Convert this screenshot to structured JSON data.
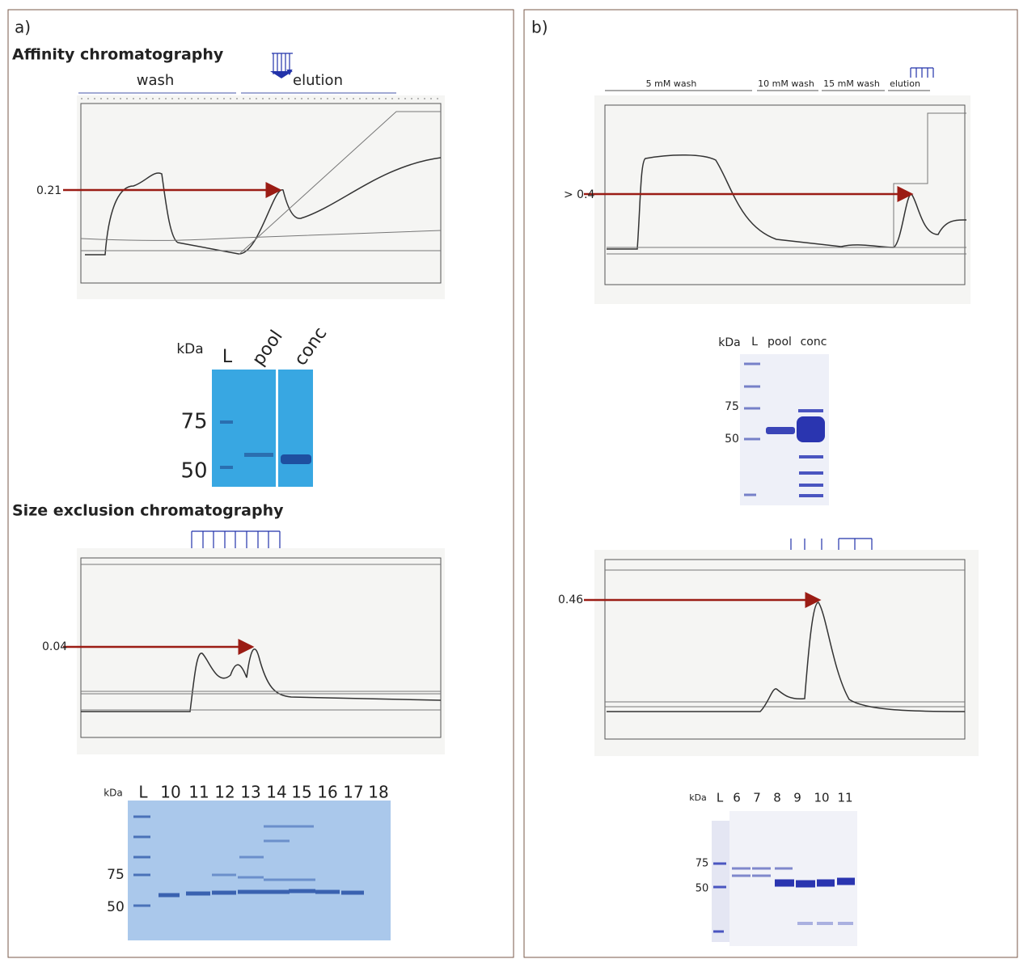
{
  "panel_a": {
    "label": "a)",
    "affinity": {
      "title": "Affinity chromatography",
      "regions": [
        "wash",
        "elution"
      ],
      "peak_label": "0.21"
    },
    "affinity_gel": {
      "unit": "kDa",
      "lanes": [
        "L",
        "pool",
        "conc"
      ],
      "markers": [
        "75",
        "50"
      ]
    },
    "sec": {
      "title": "Size exclusion chromatography",
      "peak_label": "0.04"
    },
    "sec_gel": {
      "unit": "kDa",
      "lanes": [
        "L",
        "10",
        "11",
        "12",
        "13",
        "14",
        "15",
        "16",
        "17",
        "18"
      ],
      "markers": [
        "75",
        "50"
      ]
    }
  },
  "panel_b": {
    "label": "b)",
    "affinity": {
      "regions": [
        "5 mM wash",
        "10 mM wash",
        "15 mM wash",
        "elution"
      ],
      "peak_label": "> 0.4"
    },
    "affinity_gel": {
      "unit": "kDa",
      "lanes": [
        "L",
        "pool",
        "conc"
      ],
      "markers": [
        "75",
        "50"
      ]
    },
    "sec": {
      "peak_label": "0.46"
    },
    "sec_gel": {
      "unit": "kDa",
      "lanes": [
        "L",
        "6",
        "7",
        "8",
        "9",
        "10",
        "11"
      ],
      "markers": [
        "75",
        "50"
      ]
    }
  }
}
